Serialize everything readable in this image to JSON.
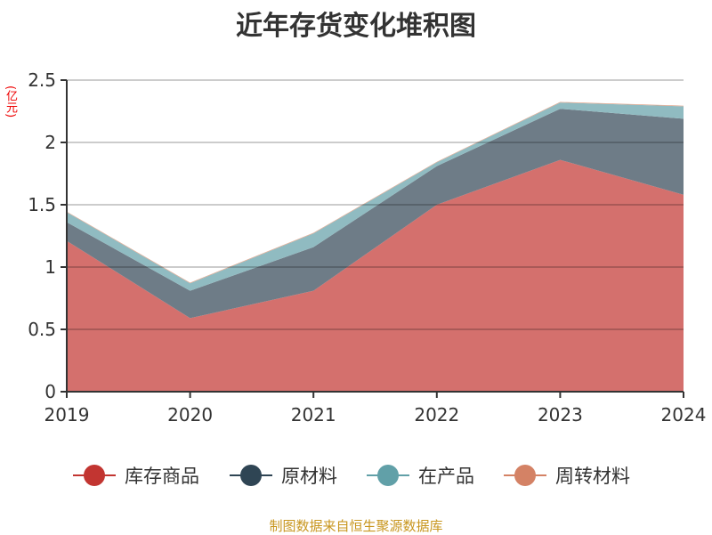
{
  "chart_data": {
    "type": "area",
    "stacked": true,
    "title": "近年存货变化堆积图",
    "ylabel": "(亿元)",
    "xlabel": "",
    "categories": [
      "2019",
      "2020",
      "2021",
      "2022",
      "2023",
      "2024"
    ],
    "ylim": [
      0,
      2.5
    ],
    "yticks": [
      "0",
      "0.5",
      "1",
      "1.5",
      "2",
      "2.5"
    ],
    "grid": true,
    "legend_position": "bottom",
    "series": [
      {
        "name": "库存商品",
        "color": "#c23531",
        "fill": "#d4706d",
        "values": [
          1.21,
          0.59,
          0.81,
          1.5,
          1.86,
          1.58
        ]
      },
      {
        "name": "原材料",
        "color": "#2f4554",
        "fill": "#6e7c87",
        "values": [
          0.15,
          0.22,
          0.35,
          0.31,
          0.41,
          0.61
        ]
      },
      {
        "name": "在产品",
        "color": "#61a0a8",
        "fill": "#90bbc1",
        "values": [
          0.08,
          0.06,
          0.11,
          0.03,
          0.05,
          0.1
        ]
      },
      {
        "name": "周转材料",
        "color": "#d48265",
        "fill": "#e0a890",
        "values": [
          0.005,
          0.005,
          0.005,
          0.005,
          0.005,
          0.005
        ]
      }
    ]
  },
  "source": "制图数据来自恒生聚源数据库"
}
